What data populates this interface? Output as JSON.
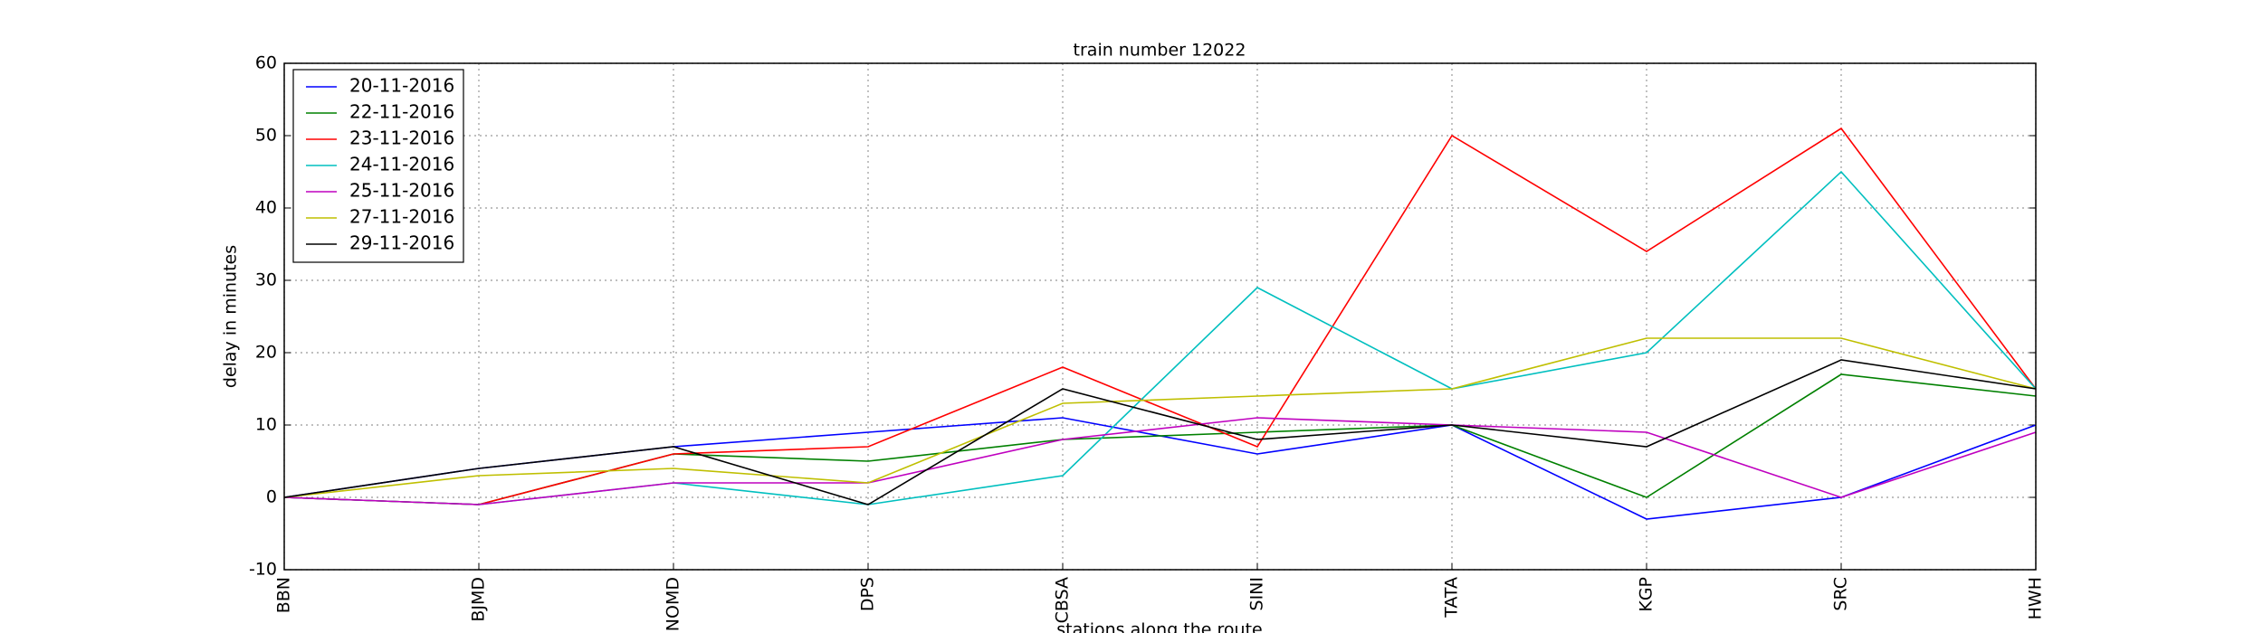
{
  "chart_data": {
    "type": "line",
    "title": "train number 12022",
    "x_label": "stations along the route",
    "y_label": "delay in minutes",
    "categories": [
      "BBN",
      "BJMD",
      "NOMD",
      "DPS",
      "CBSA",
      "SINI",
      "TATA",
      "KGP",
      "SRC",
      "HWH"
    ],
    "ylim": [
      -10,
      60
    ],
    "yticks": [
      -10,
      0,
      10,
      20,
      30,
      40,
      50,
      60
    ],
    "grid": true,
    "legend": "upper left",
    "series": [
      {
        "name": "20-11-2016",
        "color": "#0000ff",
        "values": [
          0,
          4,
          7,
          9,
          11,
          6,
          10,
          -3,
          0,
          10
        ]
      },
      {
        "name": "22-11-2016",
        "color": "#008000",
        "values": [
          0,
          -1,
          6,
          5,
          8,
          9,
          10,
          0,
          17,
          14
        ]
      },
      {
        "name": "23-11-2016",
        "color": "#ff0000",
        "values": [
          0,
          -1,
          6,
          7,
          18,
          7,
          50,
          34,
          51,
          15
        ]
      },
      {
        "name": "24-11-2016",
        "color": "#00bfbf",
        "values": [
          0,
          -1,
          2,
          -1,
          3,
          29,
          15,
          20,
          45,
          15
        ]
      },
      {
        "name": "25-11-2016",
        "color": "#bf00bf",
        "values": [
          0,
          -1,
          2,
          2,
          8,
          11,
          10,
          9,
          0,
          9
        ]
      },
      {
        "name": "27-11-2016",
        "color": "#bfbf00",
        "values": [
          0,
          3,
          4,
          2,
          13,
          14,
          15,
          22,
          22,
          15
        ]
      },
      {
        "name": "29-11-2016",
        "color": "#000000",
        "values": [
          0,
          4,
          7,
          -1,
          15,
          8,
          10,
          7,
          19,
          15
        ]
      }
    ]
  }
}
